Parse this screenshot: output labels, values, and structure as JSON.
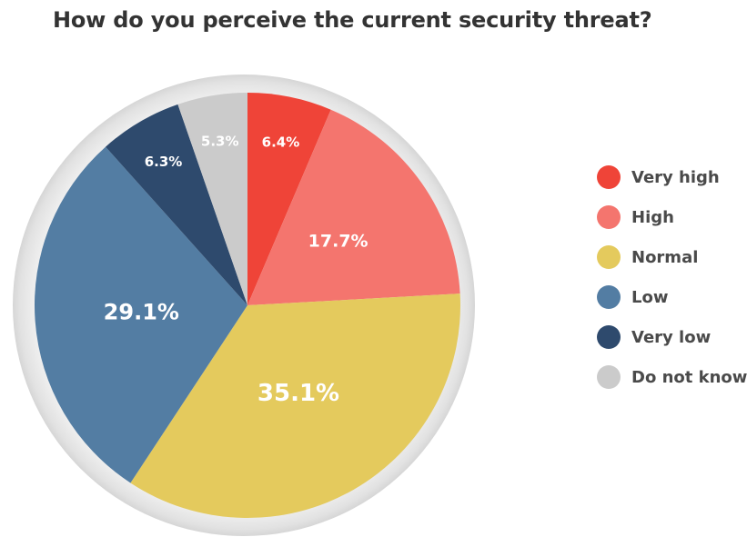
{
  "chart_data": {
    "type": "pie",
    "title": "How do you perceive the current security threat?",
    "slices": [
      {
        "name": "Very high",
        "value": 6.4,
        "label": "6.4%",
        "color": "#ef4438"
      },
      {
        "name": "High",
        "value": 17.7,
        "label": "17.7%",
        "color": "#f4756e"
      },
      {
        "name": "Normal",
        "value": 35.1,
        "label": "35.1%",
        "color": "#e4ca5d"
      },
      {
        "name": "Low",
        "value": 29.1,
        "label": "29.1%",
        "color": "#537da3"
      },
      {
        "name": "Very low",
        "value": 6.3,
        "label": "6.3%",
        "color": "#2e4a6d"
      },
      {
        "name": "Do not know",
        "value": 5.3,
        "label": "5.3%",
        "color": "#cbcbcb"
      }
    ],
    "legend_position": "right",
    "start_angle": "top",
    "direction": "clockwise"
  }
}
